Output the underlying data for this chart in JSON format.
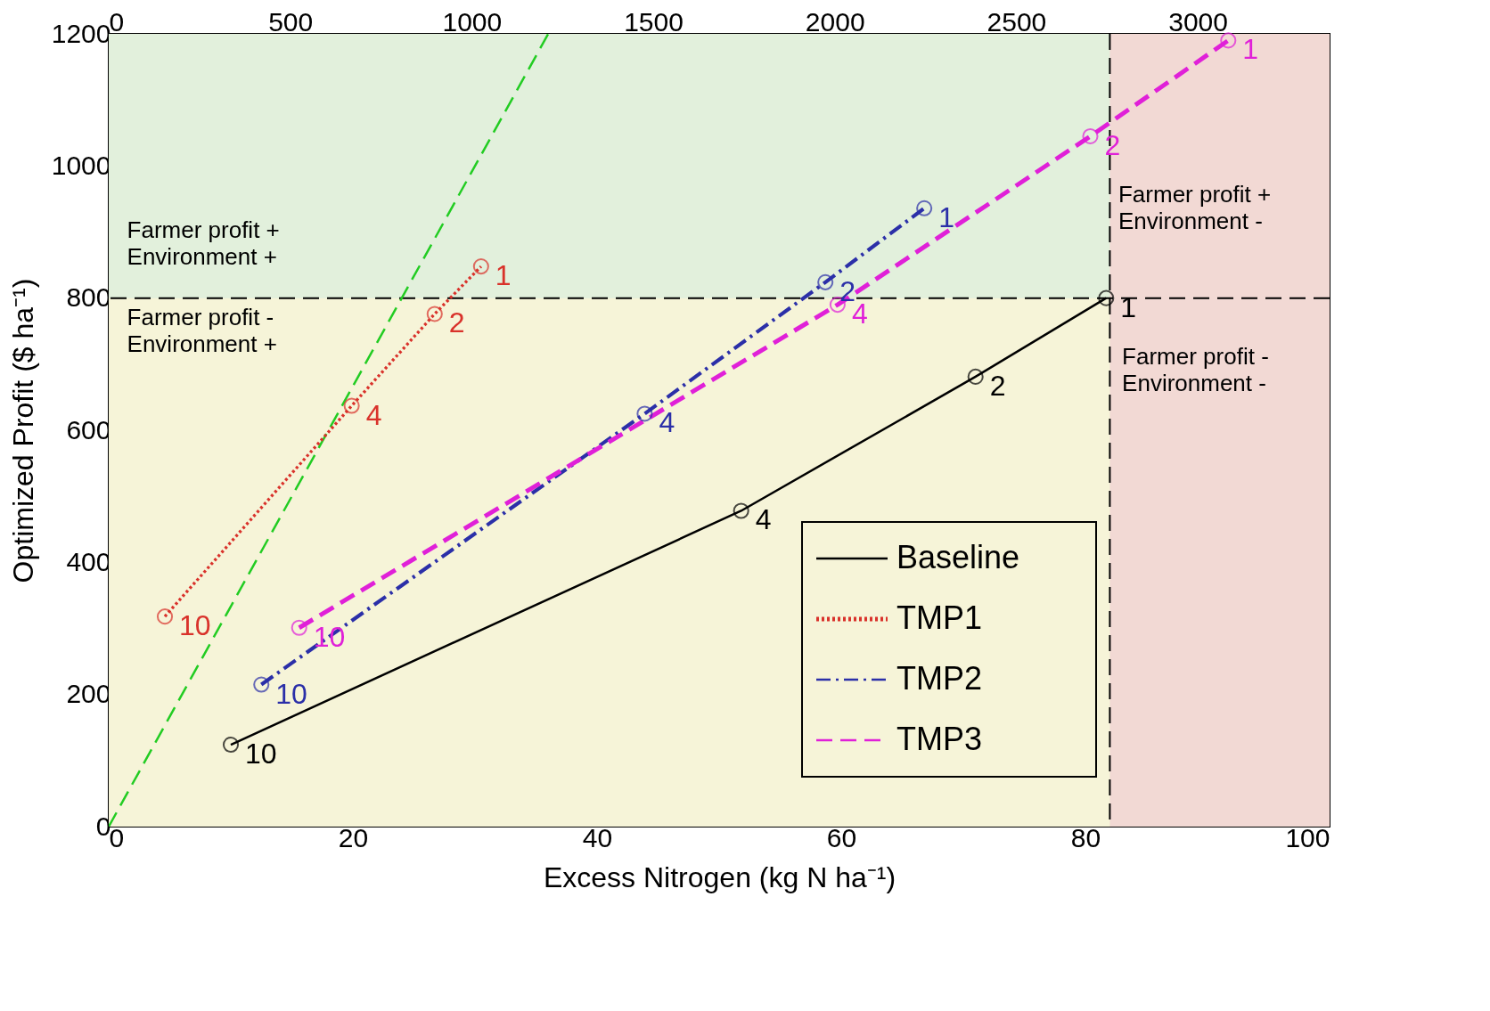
{
  "chart_data": {
    "type": "line",
    "xlabel": "Excess Nitrogen (kg N ha⁻¹)",
    "ylabel": "Optimized Profit ($ ha⁻¹)",
    "xlim": [
      0,
      100
    ],
    "xticks": [
      0,
      20,
      40,
      60,
      80,
      100
    ],
    "ylim": [
      0,
      1200
    ],
    "yticks": [
      0,
      200,
      400,
      600,
      800,
      1000,
      1200
    ],
    "x2lim": [
      0,
      3363
    ],
    "x2ticks": [
      0,
      500,
      1000,
      1500,
      2000,
      2500,
      3000
    ],
    "series": [
      {
        "name": "Baseline",
        "color": "#000000",
        "line_style": "solid",
        "marker": "circle",
        "x": [
          10.0,
          51.8,
          71.0,
          81.7
        ],
        "values": [
          124,
          478,
          681,
          800
        ]
      },
      {
        "name": "TMP1",
        "color": "#d9322b",
        "line_style": "dotted",
        "marker": "circle",
        "x": [
          4.6,
          19.9,
          26.7,
          30.5
        ],
        "values": [
          318,
          637,
          776,
          848
        ]
      },
      {
        "name": "TMP2",
        "color": "#2b2fa8",
        "line_style": "dashdot",
        "marker": "circle",
        "x": [
          12.5,
          43.9,
          58.7,
          66.8
        ],
        "values": [
          215,
          625,
          824,
          936
        ]
      },
      {
        "name": "TMP3",
        "color": "#e020d8",
        "line_style": "dashed",
        "marker": "circle",
        "x": [
          15.6,
          59.7,
          80.4,
          91.7
        ],
        "values": [
          301,
          790,
          1045,
          1190
        ]
      },
      {
        "color": "#22cc22",
        "line_style": "dashed",
        "marker": "none",
        "x": [
          0,
          36
        ],
        "values": [
          0,
          1200
        ]
      }
    ],
    "ref_lines": [
      {
        "axis": "x",
        "value": 82,
        "color": "#000000",
        "line_style": "dashed"
      },
      {
        "axis": "y",
        "value": 800,
        "color": "#000000",
        "line_style": "dashed"
      }
    ],
    "bands": [
      {
        "axis": "x",
        "from": 0,
        "to": 100,
        "color": "#f6f4d8"
      },
      {
        "axis": "y",
        "from": 800,
        "to": 1200,
        "color": "#e2f0dc"
      },
      {
        "axis": "x",
        "from": 82,
        "to": 100,
        "color": "#f2d9d4"
      }
    ],
    "annotations": [
      {
        "text": "10",
        "x": 10.0,
        "y": 124
      },
      {
        "text": "4",
        "x": 51.8,
        "y": 478
      },
      {
        "text": "2",
        "x": 71.0,
        "y": 681
      },
      {
        "text": "1",
        "x": 81.7,
        "y": 800
      },
      {
        "text": "10",
        "x": 4.6,
        "y": 318
      },
      {
        "text": "4",
        "x": 19.9,
        "y": 637
      },
      {
        "text": "2",
        "x": 26.7,
        "y": 776
      },
      {
        "text": "1",
        "x": 30.5,
        "y": 848
      },
      {
        "text": "10",
        "x": 12.5,
        "y": 215
      },
      {
        "text": "4",
        "x": 43.9,
        "y": 625
      },
      {
        "text": "2",
        "x": 58.7,
        "y": 824
      },
      {
        "text": "1",
        "x": 66.8,
        "y": 936
      },
      {
        "text": "10",
        "x": 15.6,
        "y": 301
      },
      {
        "text": "4",
        "x": 59.7,
        "y": 790
      },
      {
        "text": "2",
        "x": 80.4,
        "y": 1045
      },
      {
        "text": "1",
        "x": 91.7,
        "y": 1190
      },
      "Farmer profit +\nEnvironment +",
      "Farmer profit -\nEnvironment +",
      "Farmer profit +\nEnvironment -",
      "Farmer profit -\nEnvironment -"
    ],
    "grid": false,
    "legend": "bottom right"
  }
}
